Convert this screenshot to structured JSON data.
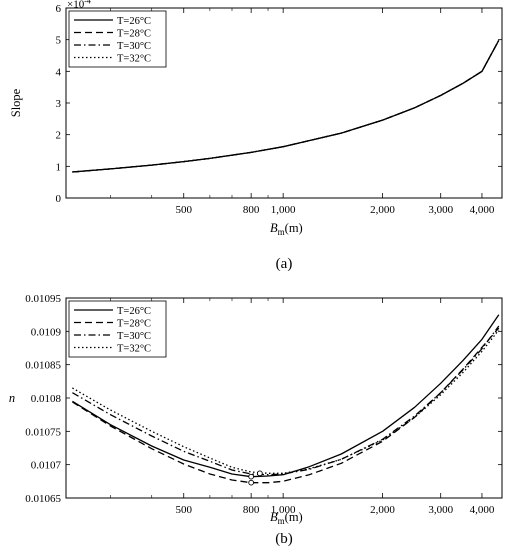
{
  "chart_data": [
    {
      "type": "line",
      "panel": "a",
      "caption": "(a)",
      "ylabel": "Slope",
      "xlabel_main": "B",
      "xlabel_sub": "m",
      "xlabel_unit": "(m)",
      "exponent_label": "×10",
      "exponent_power": "-4",
      "x_scale": "log",
      "xlim": [
        220,
        4600
      ],
      "ylim": [
        0,
        6
      ],
      "y_scale_factor": 0.0001,
      "yticks": [
        0,
        1,
        2,
        3,
        4,
        5,
        6
      ],
      "ytick_labels": [
        "0",
        "1",
        "2",
        "3",
        "4",
        "5",
        "6"
      ],
      "xticks": [
        500,
        800,
        1000,
        2000,
        3000,
        4000
      ],
      "xtick_labels": [
        "500",
        "800",
        "1,000",
        "2,000",
        "3,000",
        "4,000"
      ],
      "legend_position": "top-left",
      "x": [
        230,
        300,
        400,
        500,
        600,
        800,
        1000,
        1500,
        2000,
        2500,
        3000,
        3500,
        4000,
        4500
      ],
      "series": [
        {
          "name": "T=26°C",
          "style": "solid",
          "values": [
            0.82,
            0.92,
            1.04,
            1.15,
            1.25,
            1.44,
            1.62,
            2.05,
            2.46,
            2.85,
            3.24,
            3.62,
            4.0,
            4.98
          ]
        },
        {
          "name": "T=28°C",
          "style": "dashed",
          "values": [
            0.82,
            0.92,
            1.04,
            1.15,
            1.25,
            1.44,
            1.62,
            2.05,
            2.46,
            2.85,
            3.24,
            3.62,
            4.0,
            4.98
          ]
        },
        {
          "name": "T=30°C",
          "style": "dashdot",
          "values": [
            0.82,
            0.92,
            1.04,
            1.15,
            1.25,
            1.44,
            1.62,
            2.05,
            2.46,
            2.85,
            3.24,
            3.62,
            4.0,
            4.98
          ]
        },
        {
          "name": "T=32°C",
          "style": "dotted",
          "values": [
            0.82,
            0.92,
            1.04,
            1.15,
            1.25,
            1.44,
            1.62,
            2.05,
            2.46,
            2.85,
            3.24,
            3.62,
            4.0,
            4.98
          ]
        }
      ]
    },
    {
      "type": "line",
      "panel": "b",
      "caption": "(b)",
      "ylabel": "n",
      "xlabel_main": "B",
      "xlabel_sub": "m",
      "xlabel_unit": "(m)",
      "x_scale": "log",
      "xlim": [
        220,
        4600
      ],
      "ylim": [
        0.01065,
        0.01095
      ],
      "yticks": [
        0.01065,
        0.0107,
        0.01075,
        0.0108,
        0.01085,
        0.0109,
        0.01095
      ],
      "ytick_labels": [
        "0.01065",
        "0.0107",
        "0.01075",
        "0.0108",
        "0.01085",
        "0.0109",
        "0.01095"
      ],
      "xticks": [
        500,
        800,
        1000,
        2000,
        3000,
        4000
      ],
      "xtick_labels": [
        "500",
        "800",
        "1,000",
        "2,000",
        "3,000",
        "4,000"
      ],
      "legend_position": "top-left",
      "x": [
        230,
        300,
        400,
        500,
        600,
        700,
        800,
        900,
        1000,
        1200,
        1500,
        2000,
        2500,
        3000,
        3500,
        4000,
        4500
      ],
      "series": [
        {
          "name": "T=26°C",
          "style": "solid",
          "values": [
            0.010795,
            0.01076,
            0.010728,
            0.010707,
            0.010696,
            0.010686,
            0.010682,
            0.010683,
            0.010685,
            0.010697,
            0.010716,
            0.01075,
            0.010786,
            0.010822,
            0.010856,
            0.010888,
            0.010925
          ]
        },
        {
          "name": "T=28°C",
          "style": "dashed",
          "values": [
            0.010794,
            0.010758,
            0.010724,
            0.010701,
            0.010686,
            0.010677,
            0.010673,
            0.010673,
            0.010675,
            0.010685,
            0.010702,
            0.010735,
            0.010771,
            0.010808,
            0.010843,
            0.010876,
            0.010905
          ]
        },
        {
          "name": "T=30°C",
          "style": "dashdot",
          "values": [
            0.010808,
            0.010775,
            0.010743,
            0.01072,
            0.010705,
            0.010692,
            0.010686,
            0.010685,
            0.010686,
            0.010693,
            0.010708,
            0.010738,
            0.010773,
            0.010808,
            0.010842,
            0.010874,
            0.010908
          ]
        },
        {
          "name": "T=32°C",
          "style": "dotted",
          "values": [
            0.010815,
            0.010782,
            0.01075,
            0.010727,
            0.01071,
            0.010696,
            0.010689,
            0.010687,
            0.010687,
            0.010694,
            0.010708,
            0.010737,
            0.010771,
            0.010805,
            0.010838,
            0.01087,
            0.010902
          ]
        }
      ],
      "minimum_markers": [
        {
          "x": 800,
          "y": 0.010673
        },
        {
          "x": 800,
          "y": 0.010682
        },
        {
          "x": 850,
          "y": 0.010687
        }
      ]
    }
  ]
}
